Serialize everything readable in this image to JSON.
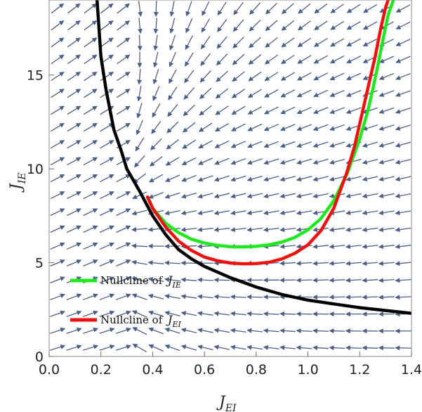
{
  "chart_data": {
    "type": "line",
    "subtype": "phase-plane with vector field",
    "title": "",
    "xlabel": "J",
    "xlabel_sub": "EI",
    "ylabel": "J",
    "ylabel_sub": "IE",
    "xlim": [
      0,
      1.4
    ],
    "ylim": [
      0,
      19
    ],
    "x_ticks": [
      {
        "value": 0.0,
        "label": "0.0"
      },
      {
        "value": 0.2,
        "label": "0.2"
      },
      {
        "value": 0.4,
        "label": "0.4"
      },
      {
        "value": 0.6,
        "label": "0.6"
      },
      {
        "value": 0.8,
        "label": "0.8"
      },
      {
        "value": 1.0,
        "label": "1.0"
      },
      {
        "value": 1.2,
        "label": "1.2"
      },
      {
        "value": 1.4,
        "label": "1.4"
      }
    ],
    "y_ticks": [
      {
        "value": 0,
        "label": "0"
      },
      {
        "value": 5,
        "label": "5"
      },
      {
        "value": 10,
        "label": "10"
      },
      {
        "value": 15,
        "label": "15"
      }
    ],
    "grid": false,
    "legend_position": "lower-left",
    "arrow_color": "#4a5f85",
    "series": [
      {
        "name": "Nullcline of ",
        "name_math": "J",
        "name_sub": "IE",
        "color": "#1ee81e",
        "x": [
          0.38,
          0.4,
          0.45,
          0.5,
          0.55,
          0.6,
          0.65,
          0.7,
          0.75,
          0.8,
          0.85,
          0.9,
          0.95,
          1.0,
          1.05,
          1.1,
          1.15,
          1.2,
          1.23,
          1.25,
          1.27,
          1.29,
          1.31,
          1.33
        ],
        "y": [
          8.5,
          7.9,
          7.1,
          6.6,
          6.25,
          6.05,
          5.92,
          5.85,
          5.84,
          5.87,
          5.95,
          6.1,
          6.35,
          6.75,
          7.35,
          8.3,
          9.7,
          11.6,
          13.0,
          14.2,
          15.5,
          16.9,
          18.2,
          19.0
        ]
      },
      {
        "name": "Nullcline of ",
        "name_math": "J",
        "name_sub": "EI",
        "color": "#ee1111",
        "x": [
          0.38,
          0.4,
          0.45,
          0.5,
          0.55,
          0.6,
          0.65,
          0.7,
          0.75,
          0.8,
          0.85,
          0.9,
          0.95,
          1.0,
          1.05,
          1.1,
          1.15,
          1.18,
          1.21,
          1.24,
          1.26,
          1.28,
          1.3,
          1.31
        ],
        "y": [
          8.5,
          7.9,
          6.9,
          6.15,
          5.65,
          5.3,
          5.1,
          4.98,
          4.94,
          4.95,
          5.02,
          5.2,
          5.5,
          5.95,
          6.7,
          7.9,
          9.8,
          11.2,
          13.0,
          14.8,
          16.0,
          17.4,
          18.6,
          19.0
        ]
      },
      {
        "name": "",
        "color": "#000000",
        "x": [
          0.185,
          0.2,
          0.22,
          0.25,
          0.28,
          0.3,
          0.35,
          0.4,
          0.45,
          0.5,
          0.55,
          0.6,
          0.7,
          0.8,
          0.9,
          1.0,
          1.1,
          1.2,
          1.3,
          1.4
        ],
        "y": [
          19.0,
          16.0,
          14.2,
          12.1,
          10.9,
          10.0,
          8.8,
          7.5,
          6.5,
          5.7,
          5.2,
          4.8,
          4.2,
          3.7,
          3.3,
          3.0,
          2.8,
          2.6,
          2.45,
          2.3
        ]
      }
    ]
  }
}
